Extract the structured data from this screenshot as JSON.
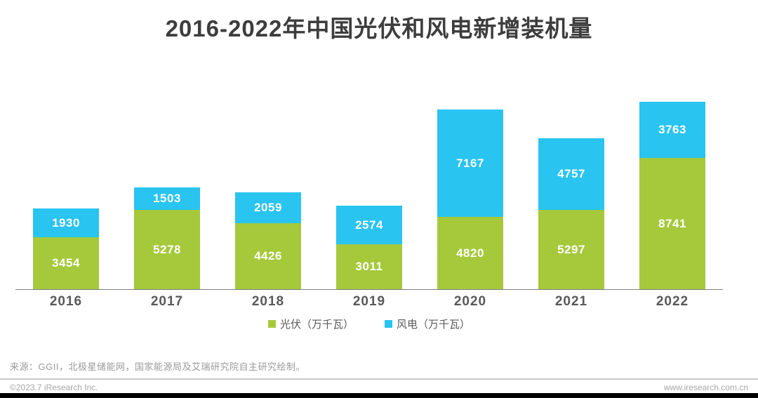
{
  "title": "2016-2022年中国光伏和风电新增装机量",
  "chart_data": {
    "type": "bar",
    "stacked": true,
    "title": "2016-2022年中国光伏和风电新增装机量",
    "categories": [
      "2016",
      "2017",
      "2018",
      "2019",
      "2020",
      "2021",
      "2022"
    ],
    "series": [
      {
        "name": "光伏（万千瓦）",
        "color": "#a5c93b",
        "values": [
          3454,
          5278,
          4426,
          3011,
          4820,
          5297,
          8741
        ]
      },
      {
        "name": "风电（万千瓦）",
        "color": "#29c4f0",
        "values": [
          1930,
          1503,
          2059,
          2574,
          7167,
          4757,
          3763
        ]
      }
    ],
    "unit": "万千瓦",
    "xlabel": "",
    "ylabel": "",
    "ylim": [
      0,
      13100
    ],
    "grid": false,
    "legend_position": "bottom",
    "value_labels": "inside-segment-white"
  },
  "legend": {
    "pv_label": "光伏（万千瓦）",
    "wind_label": "风电（万千瓦）"
  },
  "source_note": "来源：GGII，北极星储能网，国家能源局及艾瑞研究院自主研究绘制。",
  "footer": {
    "copyright": "©2023.7 iResearch Inc.",
    "website": "www.iresearch.com.cn"
  }
}
